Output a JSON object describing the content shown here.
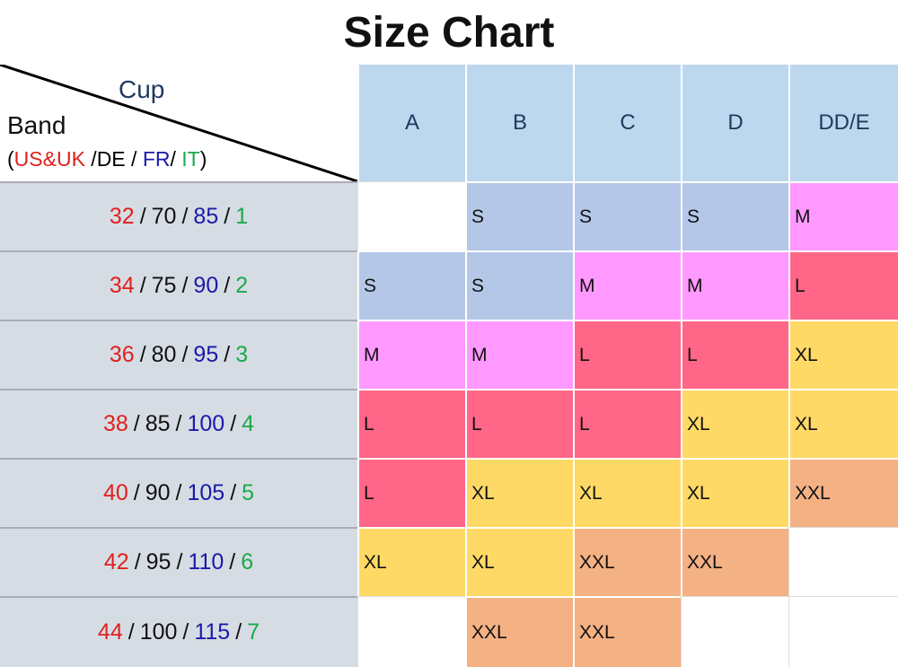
{
  "title": "Size Chart",
  "corner": {
    "cup": "Cup",
    "band": "Band",
    "legend": [
      {
        "text": "(",
        "color": "#000000"
      },
      {
        "text": "US&UK",
        "color": "#e0201e"
      },
      {
        "text": " /DE / ",
        "color": "#000000"
      },
      {
        "text": "FR",
        "color": "#1a1aa8"
      },
      {
        "text": "/ ",
        "color": "#000000"
      },
      {
        "text": "IT",
        "color": "#1aaa4a"
      },
      {
        "text": ")",
        "color": "#000000"
      }
    ]
  },
  "cups": [
    "A",
    "B",
    "C",
    "D",
    "DD/E"
  ],
  "separator": "/",
  "band_colors": [
    "#e0201e",
    "#111111",
    "#1a1aa8",
    "#1aaa4a"
  ],
  "size_colors": {
    "S": "#b4c7e7",
    "M": "#ff99ff",
    "L": "#ff6688",
    "XL": "#ffd966",
    "XXL": "#f4b183"
  },
  "rows": [
    {
      "band": [
        "32",
        "70",
        "85",
        "1"
      ],
      "sizes": [
        null,
        "S",
        "S",
        "S",
        "M"
      ]
    },
    {
      "band": [
        "34",
        "75",
        "90",
        "2"
      ],
      "sizes": [
        "S",
        "S",
        "M",
        "M",
        "L"
      ]
    },
    {
      "band": [
        "36",
        "80",
        "95",
        "3"
      ],
      "sizes": [
        "M",
        "M",
        "L",
        "L",
        "XL"
      ]
    },
    {
      "band": [
        "38",
        "85",
        "100",
        "4"
      ],
      "sizes": [
        "L",
        "L",
        "L",
        "XL",
        "XL"
      ]
    },
    {
      "band": [
        "40",
        "90",
        "105",
        "5"
      ],
      "sizes": [
        "L",
        "XL",
        "XL",
        "XL",
        "XXL"
      ]
    },
    {
      "band": [
        "42",
        "95",
        "110",
        "6"
      ],
      "sizes": [
        "XL",
        "XL",
        "XXL",
        "XXL",
        null
      ]
    },
    {
      "band": [
        "44",
        "100",
        "115",
        "7"
      ],
      "sizes": [
        null,
        "XXL",
        "XXL",
        null,
        null
      ]
    }
  ]
}
